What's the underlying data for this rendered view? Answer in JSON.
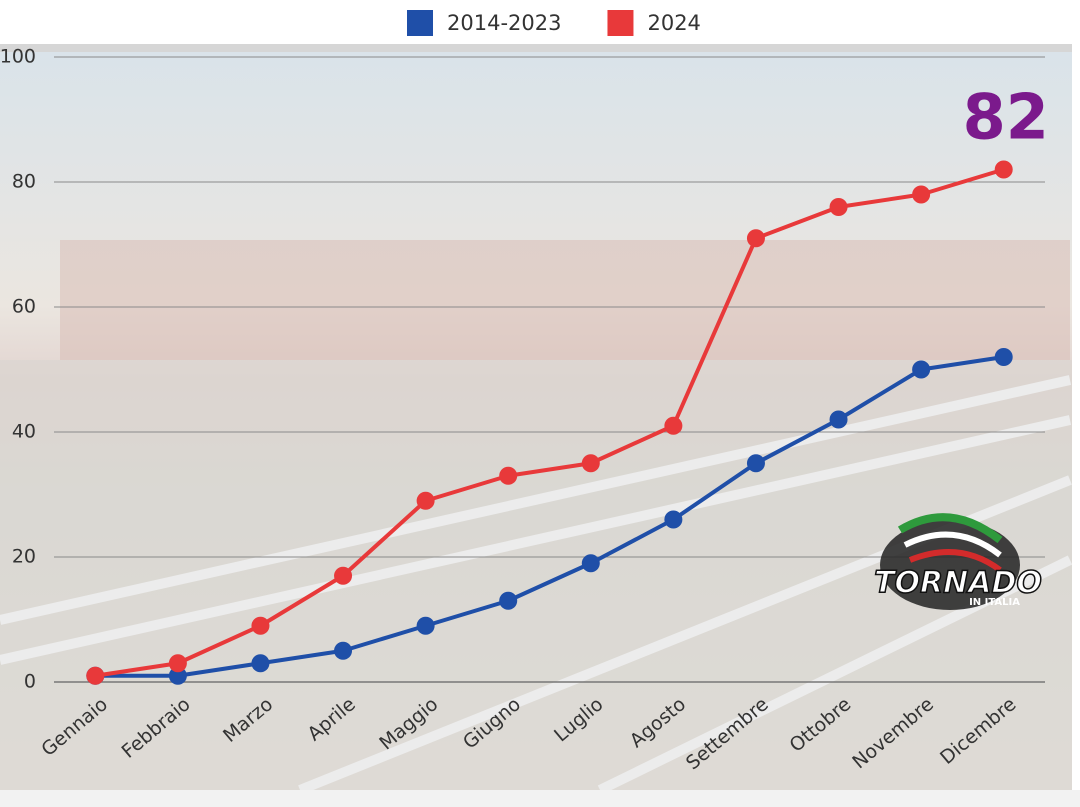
{
  "chart_data": {
    "type": "line",
    "categories": [
      "Gennaio",
      "Febbraio",
      "Marzo",
      "Aprile",
      "Maggio",
      "Giugno",
      "Luglio",
      "Agosto",
      "Settembre",
      "Ottobre",
      "Novembre",
      "Dicembre"
    ],
    "series": [
      {
        "name": "2014-2023",
        "color": "#1f4fa8",
        "values": [
          1,
          1,
          3,
          5,
          9,
          13,
          19,
          26,
          35,
          42,
          50,
          52
        ]
      },
      {
        "name": "2024",
        "color": "#e8393a",
        "values": [
          1,
          3,
          9,
          17,
          29,
          33,
          35,
          41,
          71,
          76,
          78,
          82
        ]
      }
    ],
    "ylim": [
      0,
      100
    ],
    "yticks": [
      0,
      20,
      40,
      60,
      80,
      100
    ],
    "grid": true,
    "annotation": "82",
    "annotation_color": "#7b1a8c",
    "logo": {
      "title": "TORNADO",
      "subtitle": "IN ITALIA"
    }
  }
}
